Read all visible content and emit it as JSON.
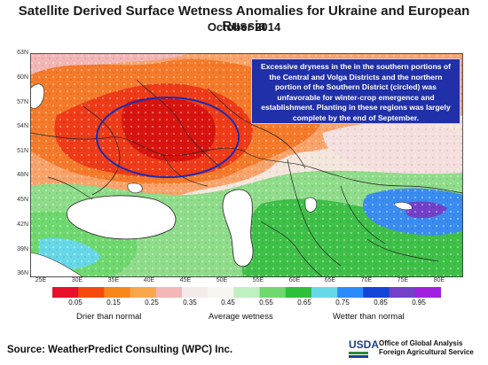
{
  "header": {
    "title": "Satellite Derived Surface Wetness Anomalies for Ukraine and European Russia",
    "subtitle": "October 2014"
  },
  "map": {
    "lat_labels": [
      "63N",
      "60N",
      "57N",
      "54N",
      "51N",
      "48N",
      "45N",
      "42N",
      "39N",
      "36N"
    ],
    "lon_labels": [
      "25E",
      "30E",
      "35E",
      "40E",
      "45E",
      "50E",
      "55E",
      "60E",
      "65E",
      "70E",
      "75E",
      "80E"
    ],
    "callout_text": "Excessive dryness in the in the southern portions of the Central and Volga Districts and the northern portion of the Southern District (circled) was unfavorable for winter-crop emergence and establishment.  Planting in these regions was largely complete by the end of September.",
    "highlight_color": "#1a2db0"
  },
  "legend": {
    "ticks": [
      "0.05",
      "0.15",
      "0.25",
      "0.35",
      "0.45",
      "0.55",
      "0.65",
      "0.75",
      "0.85",
      "0.95"
    ],
    "colors": [
      "#e8102b",
      "#f54a0c",
      "#f9861b",
      "#f8a64a",
      "#f3b6b6",
      "#f5eaea",
      "#f7f7f0",
      "#bff0c0",
      "#6fd86e",
      "#2fc03a",
      "#67d8e8",
      "#2a8bff",
      "#1443d8",
      "#7340c8",
      "#a020e0"
    ],
    "drier_label": "Drier than normal",
    "average_label": "Average wetness",
    "wetter_label": "Wetter than normal"
  },
  "footer": {
    "source": "Source: WeatherPredict Consulting (WPC) Inc.",
    "logo_text": "USDA",
    "office_line1": "Office of Global Analysis",
    "office_line2": "Foreign Agricultural Service"
  }
}
